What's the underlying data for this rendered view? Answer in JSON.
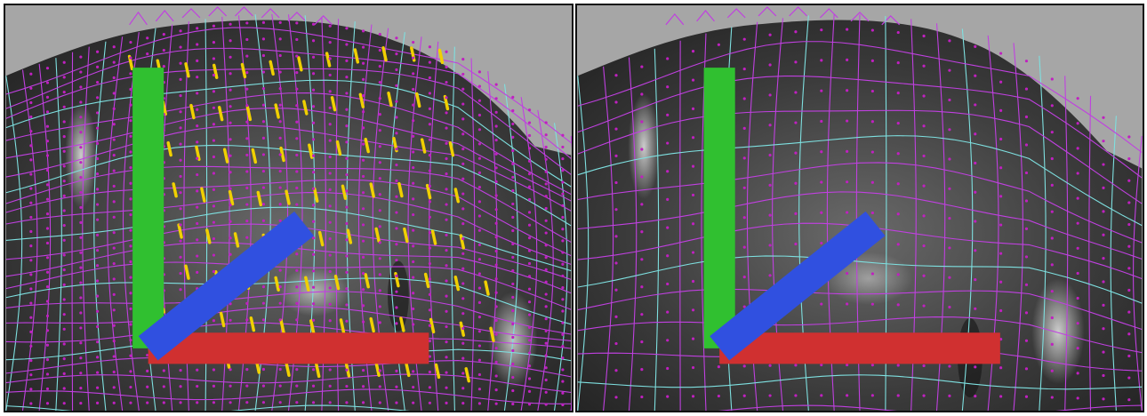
{
  "viewports": [
    {
      "id": "left",
      "background_color": "#a6a6a6",
      "mesh_color_primary": "#c040e0",
      "mesh_color_secondary": "#7ee0e0",
      "highlight_color": "#f0d000",
      "axis_icon": "xyz-axis-icon"
    },
    {
      "id": "right",
      "background_color": "#a6a6a6",
      "mesh_color_primary": "#c040e0",
      "mesh_color_secondary": "#7ee0e0",
      "axis_icon": "xyz-axis-icon"
    }
  ]
}
